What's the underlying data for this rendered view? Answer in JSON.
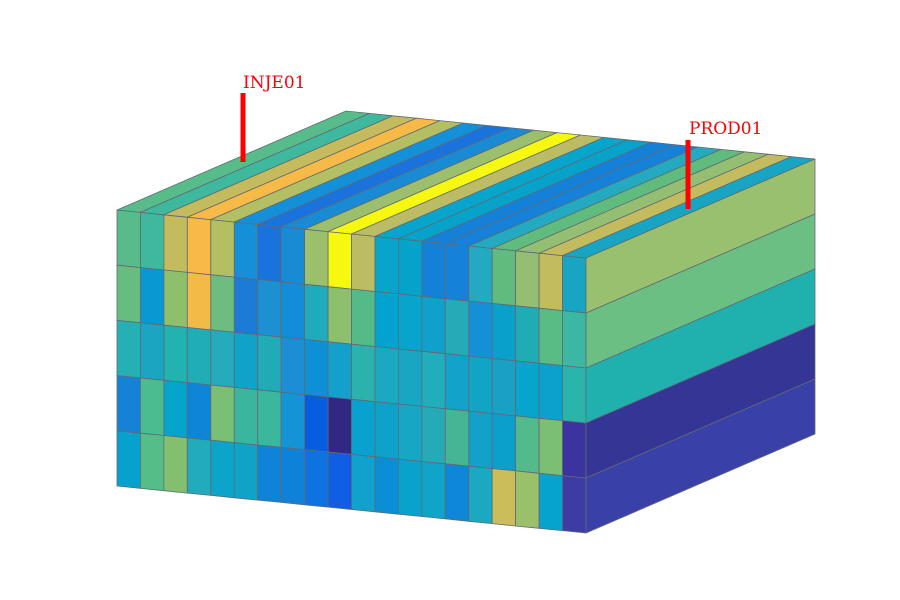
{
  "wells": [
    {
      "name": "INJE01",
      "color": "#ff0000",
      "column": 5.5
    },
    {
      "name": "PROD01",
      "color": "#ff0000",
      "column": 20.3
    }
  ],
  "grid": {
    "columns": 20,
    "layers": 5,
    "edge_color": "#606a74",
    "front_face_colors": [
      [
        "#58bc8a",
        "#3eb99d",
        "#c3bb5e",
        "#f8ba46",
        "#b3bf62",
        "#1390d8",
        "#1a72dc",
        "#198ad4",
        "#9cbf6e",
        "#f6f90f",
        "#bcbc64",
        "#07a4cc",
        "#05a3c9",
        "#1480d8",
        "#1681d8",
        "#24aac0",
        "#5fbc7e",
        "#94bf72",
        "#c2bc5e",
        "#17a5c3"
      ],
      [
        "#66bd7f",
        "#0898d2",
        "#8ec06c",
        "#f4ba48",
        "#6ebd7e",
        "#1b7bd7",
        "#1c90d2",
        "#138dd7",
        "#20abbd",
        "#8ebf6c",
        "#54ba88",
        "#04a3cf",
        "#07a4cb",
        "#0fa1cb",
        "#25aab8",
        "#1590d6",
        "#09a0cc",
        "#20acb4",
        "#59bc85",
        "#3bb7a3"
      ],
      [
        "#24b0b4",
        "#1ba5c0",
        "#22b2b0",
        "#21adb5",
        "#25abbb",
        "#0fa3c9",
        "#21abb9",
        "#1b8ed5",
        "#0d90d6",
        "#15a0cc",
        "#2bb2ad",
        "#1aa9c1",
        "#18a6c3",
        "#21aebc",
        "#13a2ca",
        "#11a4c5",
        "#19a0c4",
        "#07a4cc",
        "#0ca1cc",
        "#2bb5aa"
      ],
      [
        "#1682d5",
        "#4bbb90",
        "#04a4cc",
        "#0f85d8",
        "#79bf76",
        "#3ab69f",
        "#3bb79d",
        "#1493d6",
        "#075de0",
        "#312883",
        "#09a1ce",
        "#0ea2cb",
        "#18a6c5",
        "#26aab8",
        "#45b596",
        "#12a1c8",
        "#0b9fcc",
        "#53ba8c",
        "#7bbf75",
        "#3b34a0"
      ],
      [
        "#06a1cd",
        "#54bd88",
        "#82c070",
        "#22abbb",
        "#0ba5c9",
        "#10a3c8",
        "#0e84d8",
        "#0d82d8",
        "#0e72e0",
        "#105ee5",
        "#10a1cc",
        "#0a8fd6",
        "#09a2cc",
        "#10a4c9",
        "#0e87d8",
        "#1ba9c1",
        "#cbbe5a",
        "#9ac06a",
        "#06a3ce",
        "#3d3ba6"
      ]
    ],
    "right_face_colors": [
      "#99c06f",
      "#6cbf83",
      "#20b1af",
      "#353596",
      "#3941a8"
    ]
  }
}
